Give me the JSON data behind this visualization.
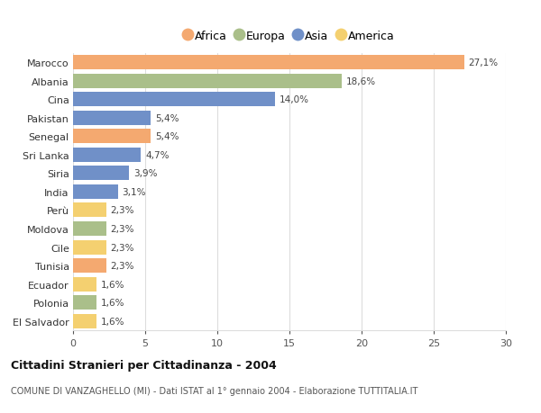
{
  "categories": [
    "Marocco",
    "Albania",
    "Cina",
    "Pakistan",
    "Senegal",
    "Sri Lanka",
    "Siria",
    "India",
    "Perù",
    "Moldova",
    "Cile",
    "Tunisia",
    "Ecuador",
    "Polonia",
    "El Salvador"
  ],
  "values": [
    27.1,
    18.6,
    14.0,
    5.4,
    5.4,
    4.7,
    3.9,
    3.1,
    2.3,
    2.3,
    2.3,
    2.3,
    1.6,
    1.6,
    1.6
  ],
  "labels": [
    "27,1%",
    "18,6%",
    "14,0%",
    "5,4%",
    "5,4%",
    "4,7%",
    "3,9%",
    "3,1%",
    "2,3%",
    "2,3%",
    "2,3%",
    "2,3%",
    "1,6%",
    "1,6%",
    "1,6%"
  ],
  "continents": [
    "Africa",
    "Europa",
    "Asia",
    "Asia",
    "Africa",
    "Asia",
    "Asia",
    "Asia",
    "America",
    "Europa",
    "America",
    "Africa",
    "America",
    "Europa",
    "America"
  ],
  "colors": {
    "Africa": "#F4A970",
    "Europa": "#AABF8A",
    "Asia": "#7090C8",
    "America": "#F4D070"
  },
  "legend_order": [
    "Africa",
    "Europa",
    "Asia",
    "America"
  ],
  "title": "Cittadini Stranieri per Cittadinanza - 2004",
  "subtitle": "COMUNE DI VANZAGHELLO (MI) - Dati ISTAT al 1° gennaio 2004 - Elaborazione TUTTITALIA.IT",
  "xlim": [
    0,
    30
  ],
  "xticks": [
    0,
    5,
    10,
    15,
    20,
    25,
    30
  ],
  "background_color": "#ffffff",
  "grid_color": "#dddddd",
  "bar_height": 0.78
}
